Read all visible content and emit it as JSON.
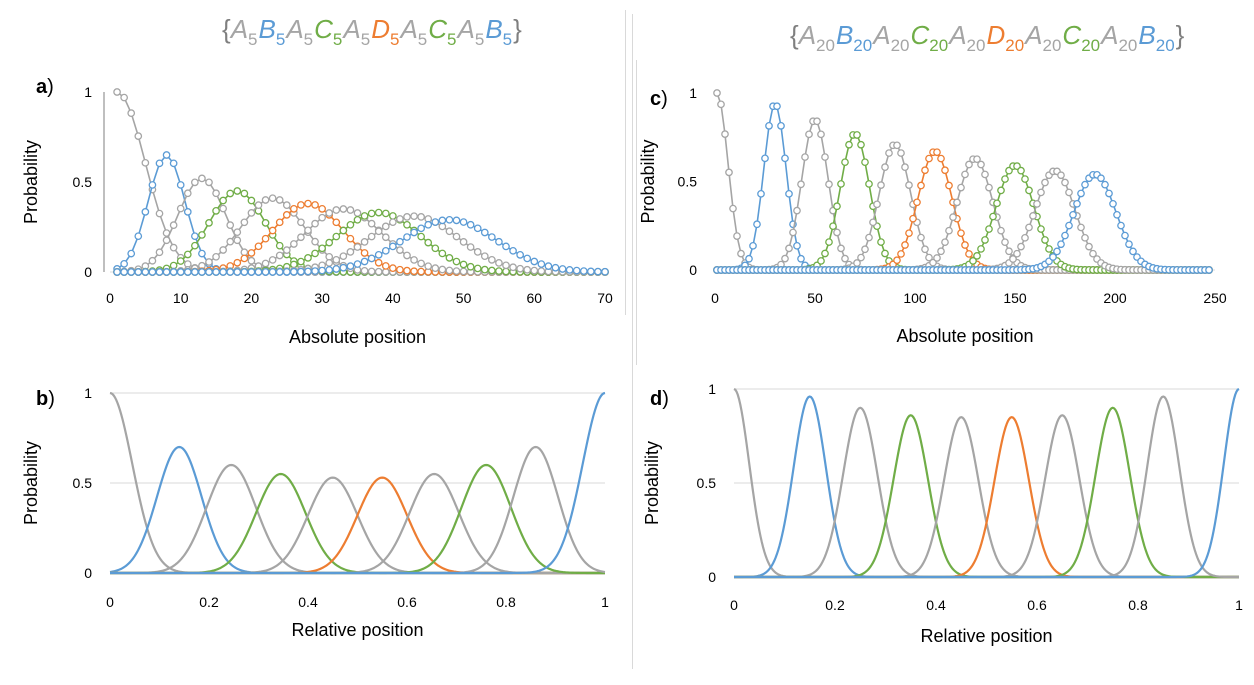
{
  "colors": {
    "A": "#a5a5a5",
    "B": "#5b9bd5",
    "C": "#70ad47",
    "D": "#ed7d31",
    "grid": "#d9d9d9",
    "axis": "#7f7f7f",
    "text": "#000000"
  },
  "sequences": {
    "left": {
      "open": "{",
      "close": "}",
      "units": [
        {
          "sym": "A",
          "sub": "5",
          "series": "A"
        },
        {
          "sym": "B",
          "sub": "5",
          "series": "B"
        },
        {
          "sym": "A",
          "sub": "5",
          "series": "A"
        },
        {
          "sym": "C",
          "sub": "5",
          "series": "C"
        },
        {
          "sym": "A",
          "sub": "5",
          "series": "A"
        },
        {
          "sym": "D",
          "sub": "5",
          "series": "D"
        },
        {
          "sym": "A",
          "sub": "5",
          "series": "A"
        },
        {
          "sym": "C",
          "sub": "5",
          "series": "C"
        },
        {
          "sym": "A",
          "sub": "5",
          "series": "A"
        },
        {
          "sym": "B",
          "sub": "5",
          "series": "B"
        }
      ]
    },
    "right": {
      "open": "{",
      "close": "}",
      "units": [
        {
          "sym": "A",
          "sub": "20",
          "series": "A"
        },
        {
          "sym": "B",
          "sub": "20",
          "series": "B"
        },
        {
          "sym": "A",
          "sub": "20",
          "series": "A"
        },
        {
          "sym": "C",
          "sub": "20",
          "series": "C"
        },
        {
          "sym": "A",
          "sub": "20",
          "series": "A"
        },
        {
          "sym": "D",
          "sub": "20",
          "series": "D"
        },
        {
          "sym": "A",
          "sub": "20",
          "series": "A"
        },
        {
          "sym": "C",
          "sub": "20",
          "series": "C"
        },
        {
          "sym": "A",
          "sub": "20",
          "series": "A"
        },
        {
          "sym": "B",
          "sub": "20",
          "series": "B"
        }
      ]
    }
  },
  "chart_data": [
    {
      "panel_label": "a)",
      "type": "line",
      "markers": true,
      "xlabel": "Absolute position",
      "ylabel": "Probability",
      "xlim": [
        0,
        70
      ],
      "ylim": [
        0,
        1
      ],
      "xticks": [
        "0",
        "10",
        "20",
        "30",
        "40",
        "50",
        "60",
        "70"
      ],
      "yticks": [
        "0",
        "0.5",
        "1"
      ],
      "grid": false,
      "x_step": 1,
      "x_max": 70,
      "series": [
        {
          "color": "A",
          "peaks": [
            [
              1,
              1.0,
              4.0,
              "left-step"
            ]
          ]
        },
        {
          "color": "B",
          "peaks": [
            [
              8,
              0.65,
              2.6
            ]
          ]
        },
        {
          "color": "A",
          "peaks": [
            [
              13,
              0.52,
              3.4
            ]
          ]
        },
        {
          "color": "C",
          "peaks": [
            [
              18,
              0.45,
              4.0
            ]
          ]
        },
        {
          "color": "A",
          "peaks": [
            [
              23,
              0.41,
              4.5
            ]
          ]
        },
        {
          "color": "D",
          "peaks": [
            [
              28,
              0.38,
              5.0
            ]
          ]
        },
        {
          "color": "A",
          "peaks": [
            [
              33,
              0.35,
              5.5
            ]
          ]
        },
        {
          "color": "C",
          "peaks": [
            [
              38,
              0.33,
              5.9
            ]
          ]
        },
        {
          "color": "A",
          "peaks": [
            [
              43,
              0.31,
              6.3
            ]
          ]
        },
        {
          "color": "B",
          "peaks": [
            [
              48,
              0.29,
              6.7
            ]
          ]
        }
      ]
    },
    {
      "panel_label": "c)",
      "type": "line",
      "markers": true,
      "xlabel": "Absolute position",
      "ylabel": "Probability",
      "xlim": [
        0,
        250
      ],
      "ylim": [
        0,
        1
      ],
      "xticks": [
        "0",
        "50",
        "100",
        "150",
        "200",
        "250"
      ],
      "yticks": [
        "0",
        "0.5",
        "1"
      ],
      "grid": false,
      "x_step": 2,
      "x_max": 248,
      "series": [
        {
          "color": "A",
          "peaks": [
            [
              1,
              1.0,
              5.5,
              "left-step"
            ]
          ]
        },
        {
          "color": "B",
          "peaks": [
            [
              30,
              0.94,
              5.6
            ]
          ]
        },
        {
          "color": "A",
          "peaks": [
            [
              50,
              0.85,
              6.6
            ]
          ]
        },
        {
          "color": "C",
          "peaks": [
            [
              70,
              0.77,
              7.3
            ]
          ]
        },
        {
          "color": "A",
          "peaks": [
            [
              90,
              0.71,
              7.9
            ]
          ]
        },
        {
          "color": "D",
          "peaks": [
            [
              110,
              0.67,
              8.5
            ]
          ]
        },
        {
          "color": "A",
          "peaks": [
            [
              130,
              0.63,
              9.0
            ]
          ]
        },
        {
          "color": "C",
          "peaks": [
            [
              150,
              0.59,
              9.5
            ]
          ]
        },
        {
          "color": "A",
          "peaks": [
            [
              170,
              0.56,
              10.0
            ]
          ]
        },
        {
          "color": "B",
          "peaks": [
            [
              190,
              0.54,
              10.5
            ]
          ]
        }
      ]
    },
    {
      "panel_label": "b)",
      "type": "line",
      "markers": false,
      "xlabel": "Relative position",
      "ylabel": "Probability",
      "xlim": [
        0,
        1
      ],
      "ylim": [
        0,
        1
      ],
      "xticks": [
        "0",
        "0.2",
        "0.4",
        "0.6",
        "0.8",
        "1"
      ],
      "yticks": [
        "0",
        "0.5",
        "1"
      ],
      "grid": true,
      "series": [
        {
          "color": "A",
          "peaks": [
            [
              0.0,
              1.0,
              0.045,
              "left-step"
            ]
          ]
        },
        {
          "color": "B",
          "peaks": [
            [
              0.14,
              0.7,
              0.045
            ]
          ]
        },
        {
          "color": "A",
          "peaks": [
            [
              0.245,
              0.6,
              0.05
            ]
          ]
        },
        {
          "color": "C",
          "peaks": [
            [
              0.345,
              0.55,
              0.05
            ]
          ]
        },
        {
          "color": "A",
          "peaks": [
            [
              0.45,
              0.53,
              0.05
            ]
          ]
        },
        {
          "color": "D",
          "peaks": [
            [
              0.55,
              0.53,
              0.05
            ]
          ]
        },
        {
          "color": "A",
          "peaks": [
            [
              0.655,
              0.55,
              0.05
            ]
          ]
        },
        {
          "color": "C",
          "peaks": [
            [
              0.76,
              0.6,
              0.05
            ]
          ]
        },
        {
          "color": "A",
          "peaks": [
            [
              0.86,
              0.7,
              0.045
            ]
          ]
        },
        {
          "color": "B",
          "peaks": [
            [
              1.0,
              1.0,
              0.045,
              "right-step"
            ]
          ]
        }
      ]
    },
    {
      "panel_label": "d)",
      "type": "line",
      "markers": false,
      "xlabel": "Relative position",
      "ylabel": "Probability",
      "xlim": [
        0,
        1
      ],
      "ylim": [
        0,
        1
      ],
      "xticks": [
        "0",
        "0.2",
        "0.4",
        "0.6",
        "0.8",
        "1"
      ],
      "yticks": [
        "0",
        "0.5",
        "1"
      ],
      "grid": true,
      "series": [
        {
          "color": "A",
          "peaks": [
            [
              0.0,
              1.0,
              0.03,
              "left-step"
            ]
          ]
        },
        {
          "color": "B",
          "peaks": [
            [
              0.15,
              0.96,
              0.032
            ]
          ]
        },
        {
          "color": "A",
          "peaks": [
            [
              0.25,
              0.9,
              0.034
            ]
          ]
        },
        {
          "color": "C",
          "peaks": [
            [
              0.35,
              0.86,
              0.034
            ]
          ]
        },
        {
          "color": "A",
          "peaks": [
            [
              0.45,
              0.85,
              0.034
            ]
          ]
        },
        {
          "color": "D",
          "peaks": [
            [
              0.55,
              0.85,
              0.034
            ]
          ]
        },
        {
          "color": "A",
          "peaks": [
            [
              0.65,
              0.86,
              0.034
            ]
          ]
        },
        {
          "color": "C",
          "peaks": [
            [
              0.75,
              0.9,
              0.034
            ]
          ]
        },
        {
          "color": "A",
          "peaks": [
            [
              0.85,
              0.96,
              0.032
            ]
          ]
        },
        {
          "color": "B",
          "peaks": [
            [
              1.0,
              1.0,
              0.03,
              "right-step"
            ]
          ]
        }
      ]
    }
  ]
}
